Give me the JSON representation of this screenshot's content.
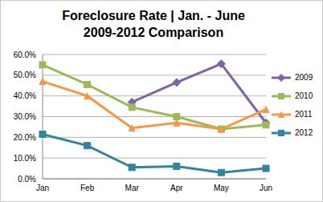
{
  "chart_data": {
    "type": "line",
    "title": "Foreclosure Rate | Jan. - June",
    "subtitle": "2009-2012 Comparison",
    "categories": [
      "Jan",
      "Feb",
      "Mar",
      "Apr",
      "May",
      "Jun"
    ],
    "series": [
      {
        "name": "2009",
        "color": "#8064a2",
        "marker": "diamond",
        "values": [
          null,
          null,
          37,
          46.5,
          55.5,
          27
        ]
      },
      {
        "name": "2010",
        "color": "#9bbb59",
        "marker": "square",
        "values": [
          55,
          45.5,
          34.5,
          30,
          24,
          26
        ]
      },
      {
        "name": "2011",
        "color": "#f79646",
        "marker": "triangle",
        "values": [
          47,
          40,
          24.5,
          27,
          24,
          33.5
        ]
      },
      {
        "name": "2012",
        "color": "#31859c",
        "marker": "square",
        "values": [
          21.5,
          16,
          5.5,
          6,
          3,
          5
        ]
      }
    ],
    "ylim": [
      0,
      60
    ],
    "yticks": [
      {
        "value": 0,
        "label": "0.0%"
      },
      {
        "value": 10,
        "label": "10.0%"
      },
      {
        "value": 20,
        "label": "20.0%"
      },
      {
        "value": 30,
        "label": "30.0%"
      },
      {
        "value": 40,
        "label": "40.0%"
      },
      {
        "value": 50,
        "label": "50.0%"
      },
      {
        "value": 60,
        "label": "60.0%"
      }
    ],
    "grid": true,
    "legend": "right"
  }
}
